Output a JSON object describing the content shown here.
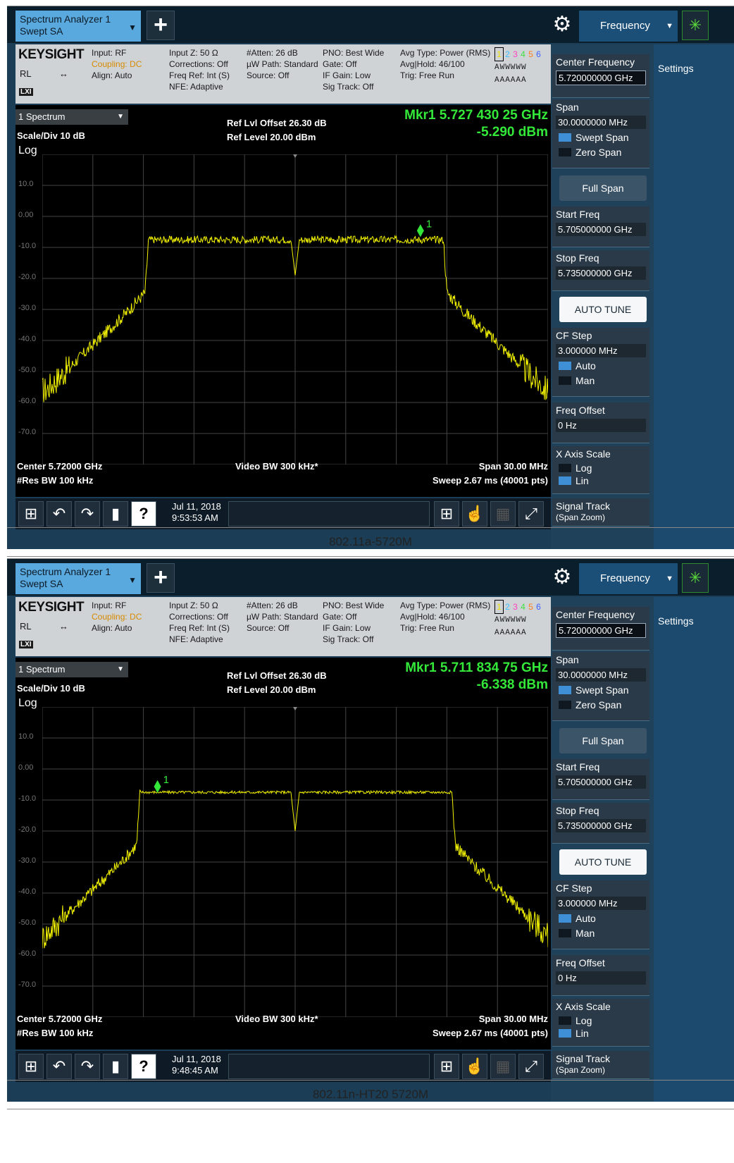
{
  "panels": [
    {
      "caption": "802.11a-5720M",
      "tab": {
        "line1": "Spectrum Analyzer 1",
        "line2": "Swept SA"
      },
      "plus_label": "+",
      "mode_tab": "Frequency",
      "info": {
        "logo": "KEYSIGHT",
        "rl": "RL",
        "col1": [
          "Input: RF",
          "Coupling: DC",
          "Align: Auto"
        ],
        "col2": [
          "Input Z: 50 Ω",
          "Corrections: Off",
          "Freq Ref: Int (S)",
          "NFE: Adaptive"
        ],
        "col3": [
          "#Atten: 26 dB",
          "µW Path: Standard",
          "Source: Off"
        ],
        "col4": [
          "PNO: Best Wide",
          "Gate: Off",
          "IF Gain: Low",
          "Sig Track: Off"
        ],
        "col5": [
          "Avg Type: Power (RMS)",
          "Avg|Hold: 46/100",
          "Trig: Free Run"
        ],
        "trace_nums": [
          "1",
          "2",
          "3",
          "4",
          "5",
          "6"
        ],
        "trace_row2": "AWWWWW",
        "trace_row3": "AAAAAA"
      },
      "plot": {
        "selector": "1 Spectrum",
        "scale": "Scale/Div 10 dB",
        "log": "Log",
        "ref_offset": "Ref Lvl Offset 26.30 dB",
        "ref_level": "Ref Level 20.00 dBm",
        "mkr_freq": "Mkr1  5.727 430 25 GHz",
        "mkr_amp": "-5.290 dBm",
        "center": "Center 5.72000 GHz",
        "res_bw": "#Res BW 100 kHz",
        "video_bw": "Video BW 300 kHz*",
        "span": "Span 30.00 MHz",
        "sweep": "Sweep 2.67 ms (40001 pts)",
        "yticks": [
          "10.0",
          "0.00",
          "-10.0",
          "-20.0",
          "-30.0",
          "-40.0",
          "-50.0",
          "-60.0",
          "-70.0"
        ]
      },
      "chart_data": {
        "type": "line",
        "x_unit": "GHz",
        "y_unit": "dBm",
        "xlim": [
          5.705,
          5.735
        ],
        "ylim": [
          -80,
          20
        ],
        "plateau_level": -7.5,
        "plateau_start": 5.7113,
        "plateau_end": 5.7288,
        "center_dip": -19,
        "noise_floor": -56,
        "marker": {
          "label": "1",
          "x": 5.72743025,
          "y": -5.29
        }
      },
      "taskbar": {
        "date": "Jul 11, 2018",
        "time": "9:53:53 AM"
      },
      "softkeys": {
        "settings": "Settings",
        "center_freq": {
          "label": "Center Frequency",
          "value": "5.720000000 GHz"
        },
        "span": {
          "label": "Span",
          "value": "30.0000000 MHz",
          "opt1": "Swept Span",
          "opt2": "Zero Span"
        },
        "full_span": "Full Span",
        "start_freq": {
          "label": "Start Freq",
          "value": "5.705000000 GHz"
        },
        "stop_freq": {
          "label": "Stop Freq",
          "value": "5.735000000 GHz"
        },
        "auto_tune": "AUTO TUNE",
        "cf_step": {
          "label": "CF Step",
          "value": "3.000000 MHz",
          "opt1": "Auto",
          "opt2": "Man"
        },
        "freq_offset": {
          "label": "Freq Offset",
          "value": "0 Hz"
        },
        "x_axis": {
          "label": "X Axis Scale",
          "opt1": "Log",
          "opt2": "Lin"
        },
        "signal_track": {
          "label": "Signal Track",
          "sub": "(Span Zoom)"
        }
      }
    },
    {
      "caption": "802.11n-HT20 5720M",
      "tab": {
        "line1": "Spectrum Analyzer 1",
        "line2": "Swept SA"
      },
      "plus_label": "+",
      "mode_tab": "Frequency",
      "info": {
        "logo": "KEYSIGHT",
        "rl": "RL",
        "col1": [
          "Input: RF",
          "Coupling: DC",
          "Align: Auto"
        ],
        "col2": [
          "Input Z: 50 Ω",
          "Corrections: Off",
          "Freq Ref: Int (S)",
          "NFE: Adaptive"
        ],
        "col3": [
          "#Atten: 26 dB",
          "µW Path: Standard",
          "Source: Off"
        ],
        "col4": [
          "PNO: Best Wide",
          "Gate: Off",
          "IF Gain: Low",
          "Sig Track: Off"
        ],
        "col5": [
          "Avg Type: Power (RMS)",
          "Avg|Hold: 46/100",
          "Trig: Free Run"
        ],
        "trace_nums": [
          "1",
          "2",
          "3",
          "4",
          "5",
          "6"
        ],
        "trace_row2": "AWWWWW",
        "trace_row3": "AAAAAA"
      },
      "plot": {
        "selector": "1 Spectrum",
        "scale": "Scale/Div 10 dB",
        "log": "Log",
        "ref_offset": "Ref Lvl Offset 26.30 dB",
        "ref_level": "Ref Level 20.00 dBm",
        "mkr_freq": "Mkr1  5.711 834 75 GHz",
        "mkr_amp": "-6.338 dBm",
        "center": "Center 5.72000 GHz",
        "res_bw": "#Res BW 100 kHz",
        "video_bw": "Video BW 300 kHz*",
        "span": "Span 30.00 MHz",
        "sweep": "Sweep 2.67 ms (40001 pts)",
        "yticks": [
          "10.0",
          "0.00",
          "-10.0",
          "-20.0",
          "-30.0",
          "-40.0",
          "-50.0",
          "-60.0",
          "-70.0"
        ]
      },
      "chart_data": {
        "type": "line",
        "x_unit": "GHz",
        "y_unit": "dBm",
        "xlim": [
          5.705,
          5.735
        ],
        "ylim": [
          -80,
          20
        ],
        "plateau_level": -7.5,
        "plateau_start": 5.7108,
        "plateau_end": 5.7293,
        "center_dip": -20,
        "noise_floor": -56,
        "marker": {
          "label": "1",
          "x": 5.71183475,
          "y": -6.338
        }
      },
      "taskbar": {
        "date": "Jul 11, 2018",
        "time": "9:48:45 AM"
      },
      "softkeys": {
        "settings": "Settings",
        "center_freq": {
          "label": "Center Frequency",
          "value": "5.720000000 GHz"
        },
        "span": {
          "label": "Span",
          "value": "30.0000000 MHz",
          "opt1": "Swept Span",
          "opt2": "Zero Span"
        },
        "full_span": "Full Span",
        "start_freq": {
          "label": "Start Freq",
          "value": "5.705000000 GHz"
        },
        "stop_freq": {
          "label": "Stop Freq",
          "value": "5.735000000 GHz"
        },
        "auto_tune": "AUTO TUNE",
        "cf_step": {
          "label": "CF Step",
          "value": "3.000000 MHz",
          "opt1": "Auto",
          "opt2": "Man"
        },
        "freq_offset": {
          "label": "Freq Offset",
          "value": "0 Hz"
        },
        "x_axis": {
          "label": "X Axis Scale",
          "opt1": "Log",
          "opt2": "Lin"
        },
        "signal_track": {
          "label": "Signal Track",
          "sub": "(Span Zoom)"
        }
      }
    }
  ]
}
